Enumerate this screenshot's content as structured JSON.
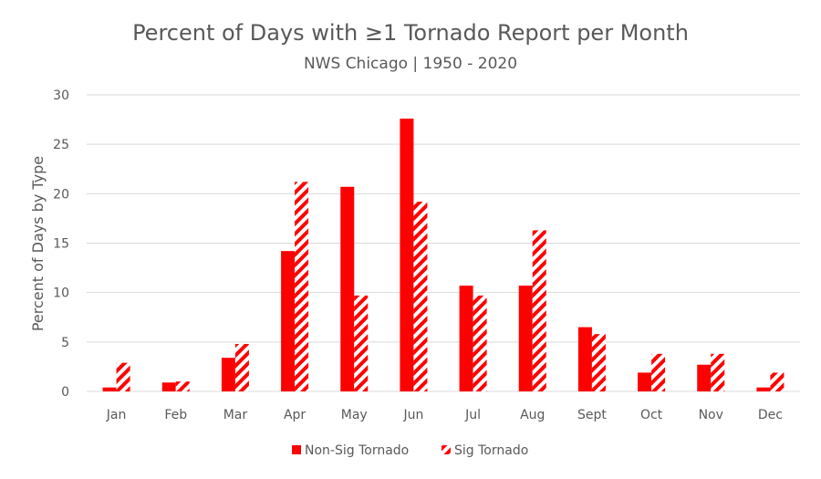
{
  "chart_data": {
    "type": "bar",
    "title": "Percent of Days with ≥1 Tornado Report per Month",
    "subtitle": "NWS Chicago | 1950 - 2020",
    "xlabel": "",
    "ylabel": "Percent of Days by Type",
    "ylim": [
      0,
      30
    ],
    "yticks": [
      0,
      5,
      10,
      15,
      20,
      25,
      30
    ],
    "grid": true,
    "legend_position": "bottom",
    "categories": [
      "Jan",
      "Feb",
      "Mar",
      "Apr",
      "May",
      "Jun",
      "Jul",
      "Aug",
      "Sept",
      "Oct",
      "Nov",
      "Dec"
    ],
    "series": [
      {
        "name": "Non-Sig Tornado",
        "color": "#ff0000",
        "pattern": "solid",
        "values": [
          0.4,
          0.9,
          3.4,
          14.2,
          20.7,
          27.6,
          10.7,
          10.7,
          6.5,
          1.9,
          2.7,
          0.4
        ]
      },
      {
        "name": "Sig Tornado",
        "color": "#ff0000",
        "pattern": "diagonal-stripes",
        "values": [
          2.9,
          1.0,
          4.8,
          21.2,
          9.7,
          19.2,
          9.7,
          16.3,
          5.8,
          3.8,
          3.8,
          1.9
        ]
      }
    ]
  }
}
